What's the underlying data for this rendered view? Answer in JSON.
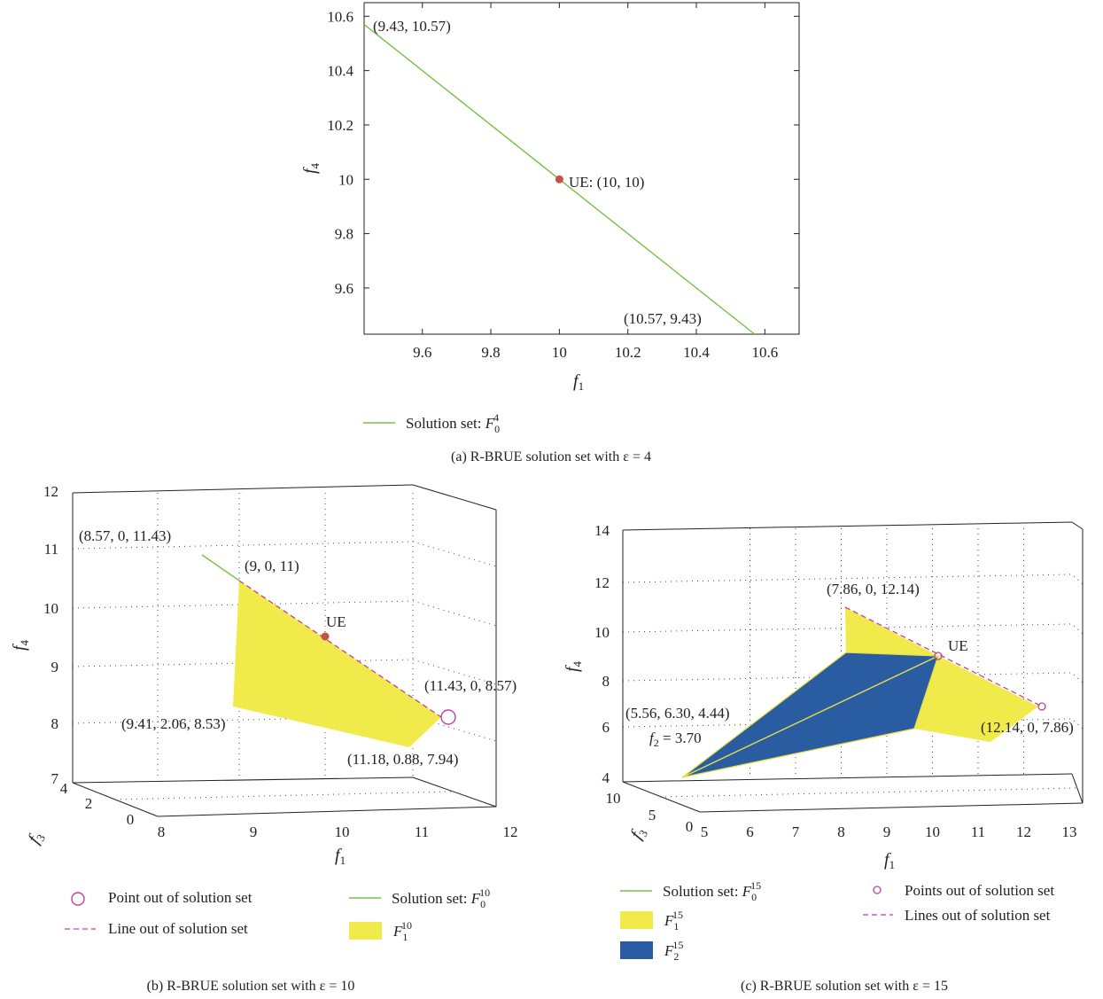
{
  "colors": {
    "line": "#77c043",
    "point": "#c8504a",
    "yellow": "#f0ea4a",
    "blue": "#2a5ca2",
    "magenta": "#c040a0",
    "axis": "#222222"
  },
  "chart_data": [
    {
      "type": "line",
      "panel": "a",
      "caption": "(a)  R-BRUE solution set with ε = 4",
      "xlabel": "f1",
      "ylabel": "f4",
      "xlim": [
        9.43,
        10.7
      ],
      "ylim": [
        9.43,
        10.65
      ],
      "xticks": [
        "9.6",
        "9.8",
        "10",
        "10.2",
        "10.4",
        "10.6"
      ],
      "yticks": [
        "9.6",
        "9.8",
        "10",
        "10.2",
        "10.4",
        "10.6"
      ],
      "series": [
        {
          "name": "Solution set: F0^4",
          "x": [
            9.43,
            10.57
          ],
          "y": [
            10.57,
            9.43
          ]
        }
      ],
      "points": [
        {
          "label": "UE: (10, 10)",
          "x": 10,
          "y": 10
        }
      ],
      "annotations": [
        "(9.43, 10.57)",
        "UE: (10, 10)",
        "(10.57, 9.43)"
      ],
      "legend": [
        {
          "label": "Solution set: F",
          "sub": "0",
          "sup": "4"
        }
      ],
      "legend_position": "bottom"
    },
    {
      "type": "area",
      "panel": "b",
      "caption": "(b)  R-BRUE solution set with ε = 10",
      "xlabel": "f1",
      "ylabel": "f4",
      "zlabel": "f3",
      "xticks": [
        "8",
        "9",
        "10",
        "11",
        "12"
      ],
      "yticks": [
        "7",
        "8",
        "9",
        "10",
        "11",
        "12"
      ],
      "zticks": [
        "0",
        "2",
        "4"
      ],
      "annotations": [
        "(8.57, 0, 11.43)",
        "(9, 0, 11)",
        "UE",
        "(11.43, 0, 8.57)",
        "(9.41, 2.06, 8.53)",
        "(11.18, 0.88, 7.94)"
      ],
      "series": [
        {
          "name": "Solution set: F0^10",
          "points": [
            [
              8.57,
              0,
              11.43
            ],
            [
              9,
              0,
              11
            ]
          ]
        },
        {
          "name": "F1^10",
          "points": [
            [
              9,
              0,
              11
            ],
            [
              11.43,
              0,
              8.57
            ],
            [
              11.18,
              0.88,
              7.94
            ],
            [
              9.41,
              2.06,
              8.53
            ]
          ]
        },
        {
          "name": "Line out of solution set",
          "points": [
            [
              9,
              0,
              11
            ],
            [
              11.43,
              0,
              8.57
            ]
          ]
        },
        {
          "name": "Point out of solution set",
          "points": [
            [
              11.43,
              0,
              8.57
            ]
          ]
        }
      ],
      "legend": [
        {
          "label": "Point out of solution set"
        },
        {
          "label": "Line out of solution set"
        },
        {
          "label": "Solution set: F",
          "sub": "0",
          "sup": "10"
        },
        {
          "label": "F",
          "sub": "1",
          "sup": "10"
        }
      ],
      "legend_position": "bottom"
    },
    {
      "type": "area",
      "panel": "c",
      "caption": "(c)  R-BRUE solution set with ε = 15",
      "xlabel": "f1",
      "ylabel": "f4",
      "zlabel": "f3",
      "xticks": [
        "5",
        "6",
        "7",
        "8",
        "9",
        "10",
        "11",
        "12",
        "13"
      ],
      "yticks": [
        "4",
        "6",
        "8",
        "10",
        "12",
        "14"
      ],
      "zticks": [
        "0",
        "5",
        "10"
      ],
      "annotations": [
        "(7.86, 0, 12.14)",
        "UE",
        "(5.56, 6.30, 4.44)",
        "f2 = 3.70",
        "(12.14, 0, 7.86)"
      ],
      "series": [
        {
          "name": "Solution set: F0^15",
          "points": [
            [
              5.56,
              6.3,
              4.44
            ],
            [
              10,
              0,
              10
            ]
          ]
        },
        {
          "name": "F1^15",
          "points": [
            [
              7.86,
              0,
              12.14
            ],
            [
              12.14,
              0,
              7.86
            ]
          ]
        },
        {
          "name": "F2^15",
          "points": [
            [
              5.56,
              6.3,
              4.44
            ],
            [
              10,
              0,
              10
            ]
          ]
        },
        {
          "name": "Points out of solution set",
          "points": [
            [
              10,
              0,
              10
            ],
            [
              12.14,
              0,
              7.86
            ]
          ]
        }
      ],
      "legend": [
        {
          "label": "Solution set: F",
          "sub": "0",
          "sup": "15"
        },
        {
          "label": "F",
          "sub": "1",
          "sup": "15"
        },
        {
          "label": "F",
          "sub": "2",
          "sup": "15"
        },
        {
          "label": "Points out of solution set"
        },
        {
          "label": "Lines out of solution set"
        }
      ],
      "legend_position": "bottom"
    }
  ]
}
